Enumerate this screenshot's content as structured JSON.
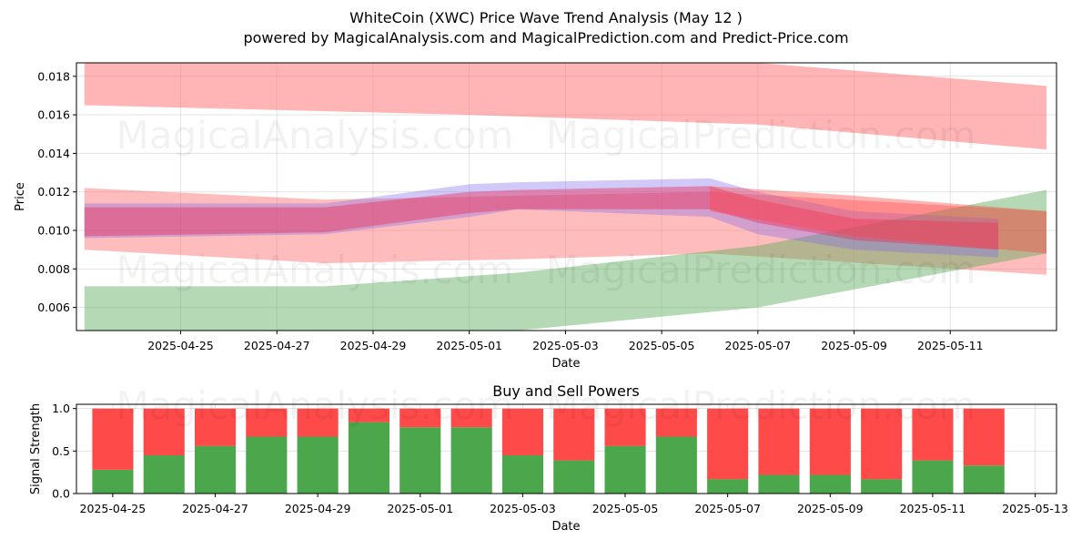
{
  "title": "WhiteCoin (XWC) Price Wave Trend Analysis (May 12 )",
  "subtitle": "powered by MagicalAnalysis.com and MagicalPrediction.com and Predict-Price.com",
  "watermarks": [
    "MagicalAnalysis.com",
    "MagicalPrediction.com"
  ],
  "chart_data": [
    {
      "type": "area",
      "xlabel": "Date",
      "ylabel": "Price",
      "xlim": [
        "2025-04-22T20:00",
        "2025-05-13T05:00"
      ],
      "ylim": [
        0.0048,
        0.0187
      ],
      "x_ticks": [
        "2025-04-25",
        "2025-04-27",
        "2025-04-29",
        "2025-05-01",
        "2025-05-03",
        "2025-05-05",
        "2025-05-07",
        "2025-05-09",
        "2025-05-11"
      ],
      "y_ticks": [
        0.006,
        0.008,
        0.01,
        0.012,
        0.014,
        0.016,
        0.018
      ],
      "y_tick_labels": [
        "0.006",
        "0.008",
        "0.010",
        "0.012",
        "0.014",
        "0.016",
        "0.018"
      ],
      "grid": true,
      "bands": [
        {
          "color": "#ff6b6b",
          "opacity": 0.5,
          "x": [
            "2025-04-23",
            "2025-05-01",
            "2025-05-07",
            "2025-05-13"
          ],
          "upper": [
            0.0187,
            0.0187,
            0.0187,
            0.0175
          ],
          "lower": [
            0.0165,
            0.016,
            0.0155,
            0.0142
          ]
        },
        {
          "color": "#ff6b6b",
          "opacity": 0.45,
          "x": [
            "2025-04-23",
            "2025-04-28",
            "2025-05-02",
            "2025-05-06",
            "2025-05-13"
          ],
          "upper": [
            0.0122,
            0.0116,
            0.0118,
            0.012,
            0.011
          ],
          "lower": [
            0.009,
            0.0083,
            0.0085,
            0.0088,
            0.0077
          ]
        },
        {
          "color": "#5aab5a",
          "opacity": 0.45,
          "x": [
            "2025-04-23",
            "2025-04-28",
            "2025-05-02",
            "2025-05-07",
            "2025-05-13"
          ],
          "upper": [
            0.0071,
            0.0071,
            0.0078,
            0.0092,
            0.0121
          ],
          "lower": [
            0.0048,
            0.0048,
            0.0048,
            0.006,
            0.0088
          ]
        },
        {
          "color": "#7b68ee",
          "opacity": 0.35,
          "x": [
            "2025-04-23",
            "2025-04-28",
            "2025-05-01",
            "2025-05-02",
            "2025-05-06",
            "2025-05-07",
            "2025-05-09",
            "2025-05-12"
          ],
          "upper": [
            0.0114,
            0.0114,
            0.0124,
            0.0125,
            0.0127,
            0.012,
            0.011,
            0.0106
          ],
          "lower": [
            0.0096,
            0.0098,
            0.0107,
            0.0111,
            0.0107,
            0.0098,
            0.009,
            0.0086
          ]
        },
        {
          "color": "#e8305a",
          "opacity": 0.45,
          "x": [
            "2025-04-23",
            "2025-04-28",
            "2025-05-01",
            "2025-05-02",
            "2025-05-06",
            "2025-05-07",
            "2025-05-09",
            "2025-05-12"
          ],
          "upper": [
            0.0112,
            0.0112,
            0.012,
            0.0121,
            0.0123,
            0.0116,
            0.0106,
            0.0104
          ],
          "lower": [
            0.0097,
            0.0099,
            0.0109,
            0.0111,
            0.0111,
            0.0104,
            0.0095,
            0.009
          ]
        },
        {
          "color": "#ff4444",
          "opacity": 0.4,
          "x": [
            "2025-05-06",
            "2025-05-09",
            "2025-05-13"
          ],
          "upper": [
            0.0123,
            0.0118,
            0.011
          ],
          "lower": [
            0.011,
            0.0097,
            0.0088
          ]
        }
      ]
    },
    {
      "type": "bar",
      "title": "Buy and Sell Powers",
      "xlabel": "Date",
      "ylabel": "Signal Strength",
      "ylim": [
        0,
        1.05
      ],
      "xlim": [
        "2025-04-24T07:00",
        "2025-05-13T10:00"
      ],
      "x_ticks": [
        "2025-04-25",
        "2025-04-27",
        "2025-04-29",
        "2025-05-01",
        "2025-05-03",
        "2025-05-05",
        "2025-05-07",
        "2025-05-09",
        "2025-05-11",
        "2025-05-13"
      ],
      "y_ticks": [
        0.0,
        0.5,
        1.0
      ],
      "y_tick_labels": [
        "0.0",
        "0.5",
        "1.0"
      ],
      "grid": true,
      "categories": [
        "2025-04-25",
        "2025-04-26",
        "2025-04-27",
        "2025-04-28",
        "2025-04-29",
        "2025-04-30",
        "2025-05-01",
        "2025-05-02",
        "2025-05-03",
        "2025-05-04",
        "2025-05-05",
        "2025-05-06",
        "2025-05-07",
        "2025-05-08",
        "2025-05-09",
        "2025-05-10",
        "2025-05-11",
        "2025-05-12"
      ],
      "series": [
        {
          "color": "#4ca64c",
          "values": [
            0.28,
            0.45,
            0.56,
            0.67,
            0.67,
            0.84,
            0.78,
            0.78,
            0.45,
            0.39,
            0.56,
            0.67,
            0.17,
            0.22,
            0.22,
            0.17,
            0.39,
            0.33
          ]
        },
        {
          "color": "#ff4a4a",
          "values": [
            0.72,
            0.55,
            0.44,
            0.33,
            0.33,
            0.16,
            0.22,
            0.22,
            0.55,
            0.61,
            0.44,
            0.33,
            0.83,
            0.78,
            0.78,
            0.83,
            0.61,
            0.67
          ]
        }
      ]
    }
  ]
}
